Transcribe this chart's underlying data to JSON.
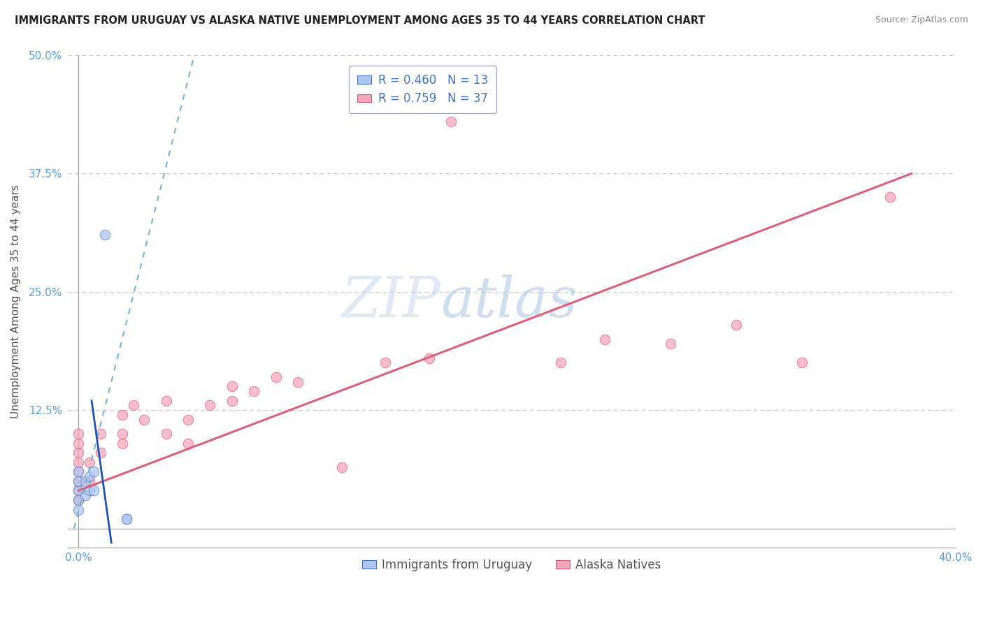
{
  "title": "IMMIGRANTS FROM URUGUAY VS ALASKA NATIVE UNEMPLOYMENT AMONG AGES 35 TO 44 YEARS CORRELATION CHART",
  "source": "Source: ZipAtlas.com",
  "ylabel": "Unemployment Among Ages 35 to 44 years",
  "xlabel": "",
  "xlim": [
    -0.005,
    0.4
  ],
  "ylim": [
    -0.02,
    0.5
  ],
  "xticks": [
    0.0,
    0.4
  ],
  "xticklabels": [
    "0.0%",
    "40.0%"
  ],
  "yticks": [
    0.0,
    0.125,
    0.25,
    0.375,
    0.5
  ],
  "yticklabels": [
    "",
    "12.5%",
    "25.0%",
    "37.5%",
    "50.0%"
  ],
  "blue_R": 0.46,
  "blue_N": 13,
  "pink_R": 0.759,
  "pink_N": 37,
  "blue_scatter_x": [
    0.0,
    0.0,
    0.0,
    0.0,
    0.0,
    0.003,
    0.003,
    0.005,
    0.005,
    0.007,
    0.007,
    0.022,
    0.022
  ],
  "blue_scatter_y": [
    0.02,
    0.03,
    0.04,
    0.05,
    0.06,
    0.035,
    0.05,
    0.04,
    0.055,
    0.04,
    0.06,
    0.01,
    0.01
  ],
  "blue_outlier_x": [
    0.012
  ],
  "blue_outlier_y": [
    0.31
  ],
  "pink_scatter_x": [
    0.0,
    0.0,
    0.0,
    0.0,
    0.0,
    0.0,
    0.0,
    0.0,
    0.005,
    0.005,
    0.01,
    0.01,
    0.02,
    0.02,
    0.02,
    0.025,
    0.03,
    0.04,
    0.04,
    0.05,
    0.05,
    0.06,
    0.07,
    0.07,
    0.08,
    0.09,
    0.1,
    0.12,
    0.14,
    0.16,
    0.17,
    0.22,
    0.24,
    0.27,
    0.3,
    0.33,
    0.37
  ],
  "pink_scatter_y": [
    0.03,
    0.04,
    0.05,
    0.06,
    0.07,
    0.08,
    0.09,
    0.1,
    0.05,
    0.07,
    0.08,
    0.1,
    0.09,
    0.1,
    0.12,
    0.13,
    0.115,
    0.1,
    0.135,
    0.09,
    0.115,
    0.13,
    0.135,
    0.15,
    0.145,
    0.16,
    0.155,
    0.065,
    0.175,
    0.18,
    0.43,
    0.175,
    0.2,
    0.195,
    0.215,
    0.175,
    0.35
  ],
  "blue_color": "#adc6f0",
  "blue_dark": "#4472c4",
  "pink_color": "#f4a7b9",
  "pink_dark": "#d94f7a",
  "trend_blue_dash_color": "#7bafd4",
  "trend_blue_solid_color": "#2255aa",
  "trend_pink_color": "#d9607a",
  "watermark_zip": "ZIP",
  "watermark_atlas": "atlas",
  "grid_color": "#c8c8c8",
  "tick_color": "#5b9bd5",
  "bg_color": "#ffffff"
}
